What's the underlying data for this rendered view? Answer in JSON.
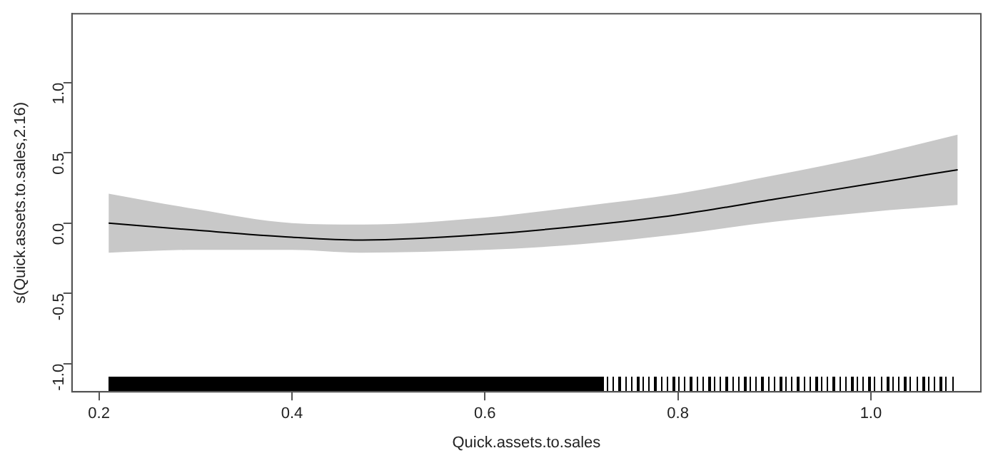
{
  "chart_data": {
    "type": "line",
    "xlabel": "Quick.assets.to.sales",
    "ylabel": "s(Quick.assets.to.sales,2.16)",
    "xlim": [
      0.172,
      1.114
    ],
    "xticks": [
      0.2,
      0.4,
      0.6,
      0.8,
      {
        "value": 1,
        "label": "1.0"
      }
    ],
    "ylim": [
      -1.2,
      1.49
    ],
    "yticks": [
      {
        "value": -1,
        "label": "-1.0"
      },
      -0.5,
      {
        "value": 0,
        "label": "0.0"
      },
      0.5,
      {
        "value": 1,
        "label": "1.0"
      }
    ],
    "grid": false,
    "legend": false,
    "marker": "none",
    "line_style": "solid",
    "series": [
      {
        "color": "#000000",
        "x": [
          0.21,
          0.3,
          0.4,
          0.47,
          0.6,
          0.7,
          0.8,
          0.9,
          1.0,
          1.09
        ],
        "values": [
          0.0,
          -0.05,
          -0.1,
          -0.12,
          -0.08,
          -0.02,
          0.06,
          0.17,
          0.28,
          0.38
        ],
        "lower": [
          -0.21,
          -0.19,
          -0.19,
          -0.21,
          -0.19,
          -0.15,
          -0.08,
          0.01,
          0.08,
          0.13
        ],
        "upper": [
          0.21,
          0.1,
          0.0,
          -0.01,
          0.04,
          0.12,
          0.21,
          0.34,
          0.48,
          0.63
        ]
      }
    ]
  }
}
